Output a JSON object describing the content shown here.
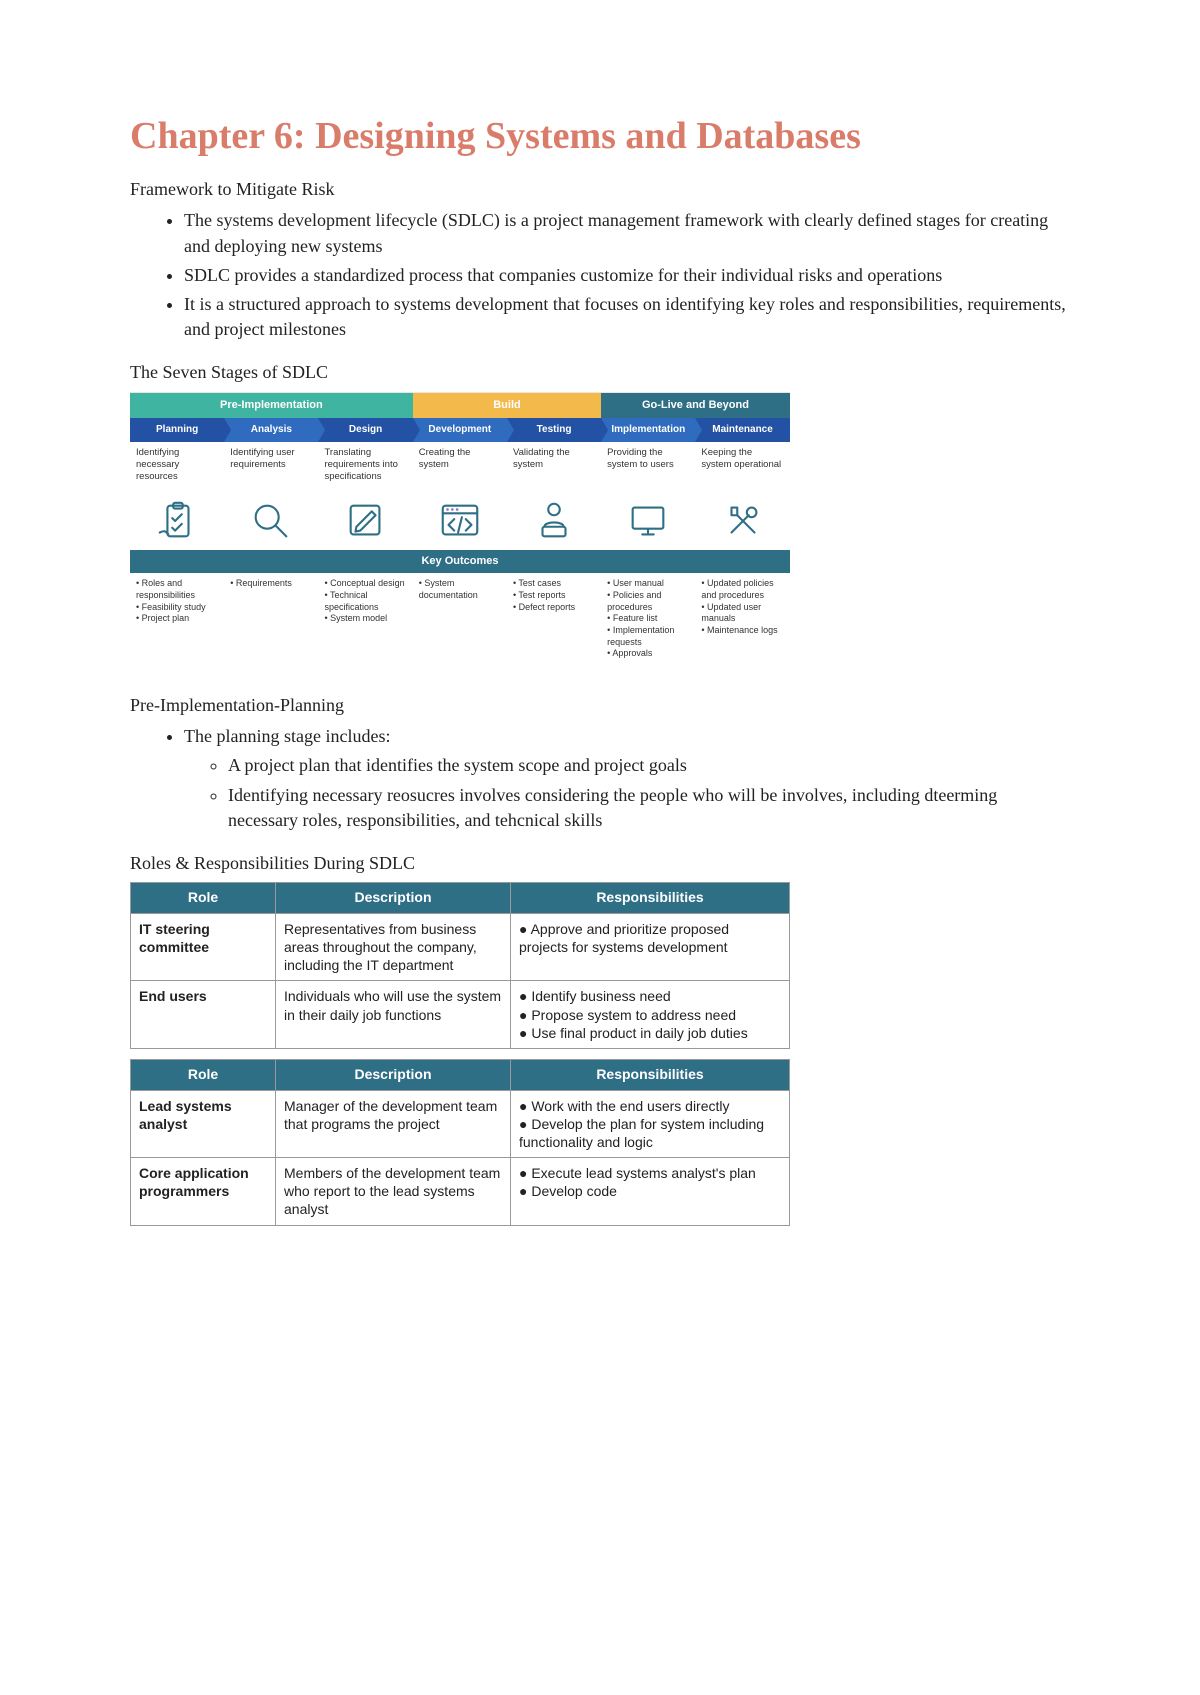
{
  "title": "Chapter 6: Designing Systems and Databases",
  "title_color": "#d97c6a",
  "framework_heading": "Framework to Mitigate Risk",
  "framework_bullets": [
    "The systems development lifecycle (SDLC) is a project management framework with clearly defined stages for creating and deploying new systems",
    "SDLC provides a standardized process that companies customize for their individual risks and operations",
    "It is a structured approach to systems development that focuses on identifying key roles and responsibilities, requirements, and project milestones"
  ],
  "seven_heading": "The Seven Stages of SDLC",
  "sdlc": {
    "col_width_pct": 14.28,
    "phases": [
      {
        "label": "Pre-Implementation",
        "span": 3,
        "bg": "#3fb4a0"
      },
      {
        "label": "Build",
        "span": 2,
        "bg": "#f3b94b"
      },
      {
        "label": "Go-Live and Beyond",
        "span": 2,
        "bg": "#2f6f86"
      }
    ],
    "stages": [
      {
        "label": "Planning",
        "bg": "#2351a3",
        "arrow": "#2351a3"
      },
      {
        "label": "Analysis",
        "bg": "#2f6bbf",
        "arrow": "#2f6bbf"
      },
      {
        "label": "Design",
        "bg": "#2351a3",
        "arrow": "#2351a3"
      },
      {
        "label": "Development",
        "bg": "#2f6bbf",
        "arrow": "#2f6bbf"
      },
      {
        "label": "Testing",
        "bg": "#2351a3",
        "arrow": "#2351a3"
      },
      {
        "label": "Implementation",
        "bg": "#2f6bbf",
        "arrow": "#2f6bbf"
      },
      {
        "label": "Maintenance",
        "bg": "#2351a3",
        "arrow": "#2351a3"
      }
    ],
    "descs": [
      "Identifying necessary resources",
      "Identifying user requirements",
      "Translating requirements into specifications",
      "Creating the system",
      "Validating the system",
      "Providing the system to users",
      "Keeping the system operational"
    ],
    "icons": [
      "clipboard",
      "magnifier",
      "pencil-square",
      "code-window",
      "user-laptop",
      "monitor",
      "tools"
    ],
    "icon_stroke": "#2f6f86",
    "icon_accent": "#8f79d6",
    "key_label": "Key Outcomes",
    "key_bg": "#2f6f86",
    "outcomes": [
      [
        "• Roles and responsibilities",
        "• Feasibility study",
        "• Project plan"
      ],
      [
        "• Requirements"
      ],
      [
        "• Conceptual design",
        "• Technical specifications",
        "• System model"
      ],
      [
        "• System documentation"
      ],
      [
        "• Test cases",
        "• Test reports",
        "• Defect reports"
      ],
      [
        "• User manual",
        "• Policies and procedures",
        "• Feature list",
        "• Implementation requests",
        "• Approvals"
      ],
      [
        "• Updated policies and procedures",
        "• Updated user manuals",
        "• Maintenance logs"
      ]
    ]
  },
  "preimpl_heading": "Pre-Implementation-Planning",
  "preimpl_lead": "The planning stage includes:",
  "preimpl_sub": [
    "A project plan that identifies the system scope and project goals",
    "Identifying necessary reosucres involves considering the people who will be involves, including dteerming necessary roles, responsibilities, and tehcnical skills"
  ],
  "roles_heading": "Roles & Responsibilities During SDLC",
  "table_headers": {
    "role": "Role",
    "desc": "Description",
    "resp": "Responsibilities"
  },
  "table_header_bg": "#2f6f86",
  "table1": [
    {
      "role": "IT steering committee",
      "desc": "Representatives from business areas throughout the company, including the IT department",
      "resp": [
        "Approve and prioritize proposed projects for systems development"
      ]
    },
    {
      "role": "End users",
      "desc": "Individuals who will use the system in their daily job functions",
      "resp": [
        "Identify business need",
        "Propose system to address need",
        "Use final product in daily job duties"
      ]
    }
  ],
  "table2": [
    {
      "role": "Lead systems analyst",
      "desc": "Manager of the development team that programs the project",
      "resp": [
        "Work with the end users directly",
        "Develop the plan for system including functionality and logic"
      ]
    },
    {
      "role": "Core application programmers",
      "desc": "Members of the development team who report to the lead systems analyst",
      "resp": [
        "Execute lead systems analyst's plan",
        "Develop code"
      ]
    }
  ]
}
